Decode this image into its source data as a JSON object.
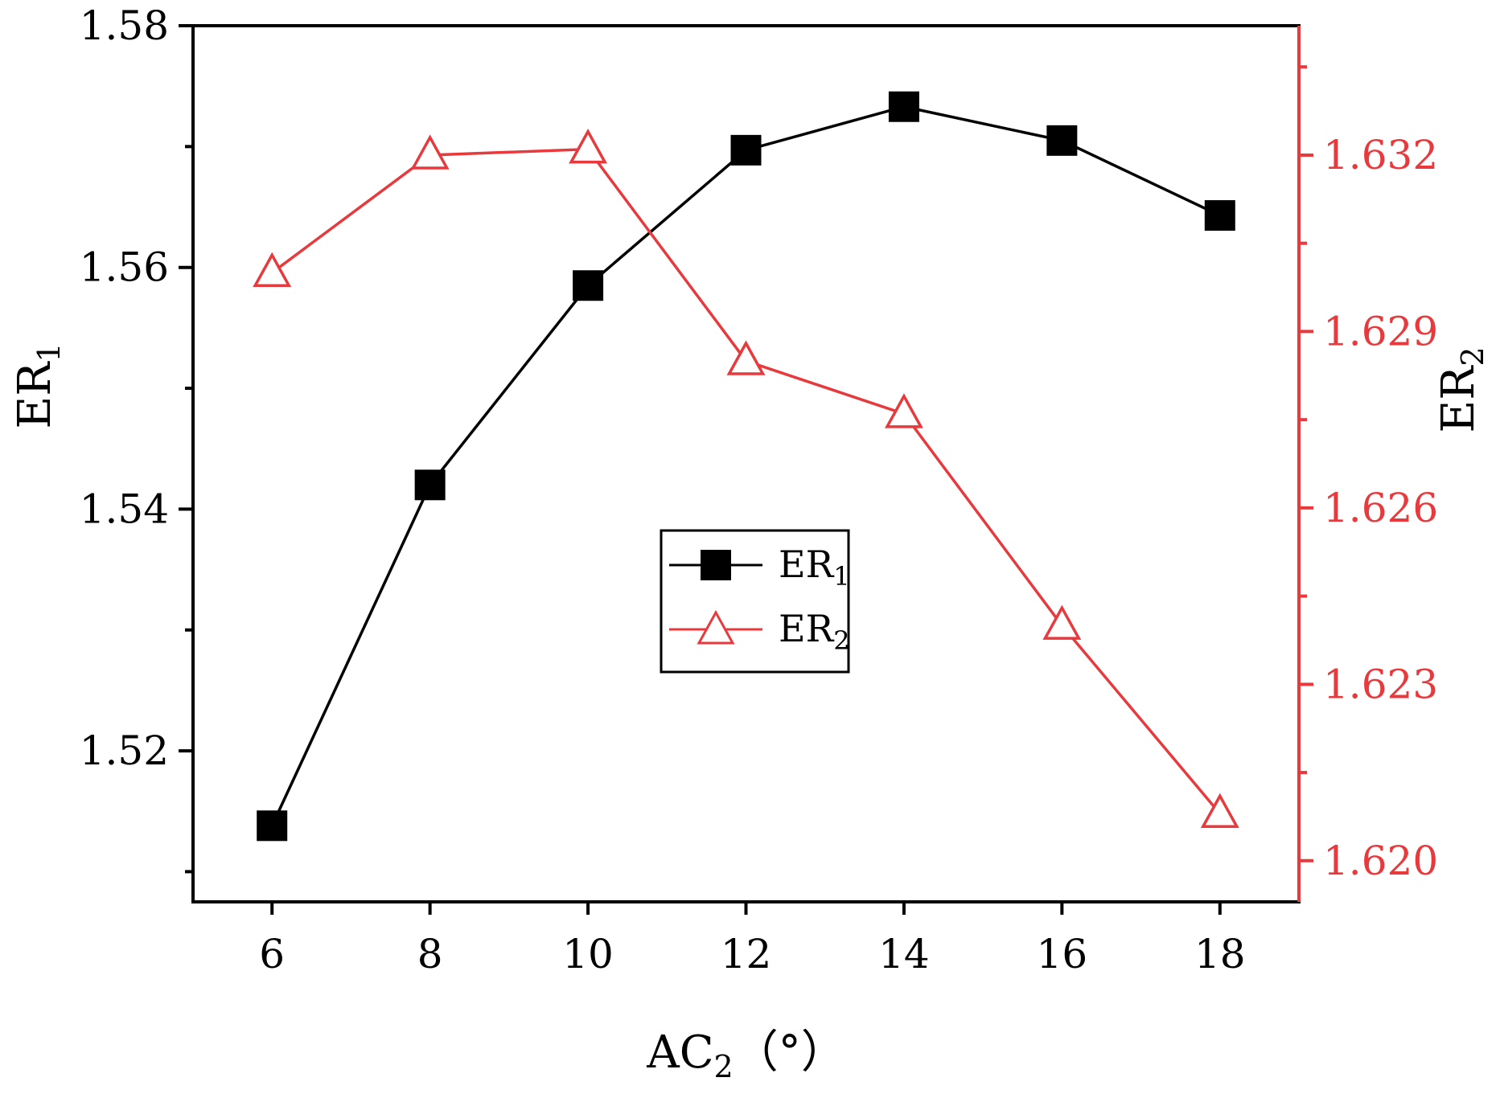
{
  "chart_data": {
    "type": "line",
    "x": [
      6,
      8,
      10,
      12,
      14,
      16,
      18
    ],
    "xlim": [
      5,
      19
    ],
    "xticks": [
      6,
      8,
      10,
      12,
      14,
      16,
      18
    ],
    "xlabel": {
      "base": "AC",
      "sub": "2",
      "unit": "（°）"
    },
    "y_left": {
      "label": {
        "base": "ER",
        "sub": "1"
      },
      "ylim": [
        1.5075,
        1.58
      ],
      "ticks": [
        1.52,
        1.54,
        1.56,
        1.58
      ],
      "tick_labels": [
        "1.52",
        "1.54",
        "1.56",
        "1.58"
      ],
      "minor_ticks": [
        1.51,
        1.53,
        1.55,
        1.57
      ],
      "color": "#000000"
    },
    "y_right": {
      "label": {
        "base": "ER",
        "sub": "2"
      },
      "ylim": [
        1.6193,
        1.6342
      ],
      "ticks": [
        1.62,
        1.623,
        1.626,
        1.629,
        1.632
      ],
      "tick_labels": [
        "1.620",
        "1.623",
        "1.626",
        "1.629",
        "1.632"
      ],
      "minor_ticks": [
        1.6215,
        1.6245,
        1.6275,
        1.6305,
        1.6335
      ],
      "color": "#e8393d"
    },
    "series": [
      {
        "name": "ER1",
        "legend": {
          "base": "ER",
          "sub": "1"
        },
        "axis": "left",
        "marker": "square",
        "color": "#000000",
        "values": [
          1.5138,
          1.542,
          1.5585,
          1.5697,
          1.5733,
          1.5705,
          1.5643
        ]
      },
      {
        "name": "ER2",
        "legend": {
          "base": "ER",
          "sub": "2"
        },
        "axis": "right",
        "marker": "triangle-open",
        "color": "#e8393d",
        "values": [
          1.63,
          1.632,
          1.6321,
          1.6285,
          1.6276,
          1.624,
          1.6208
        ]
      }
    ],
    "legend_position": "center",
    "grid": false
  }
}
